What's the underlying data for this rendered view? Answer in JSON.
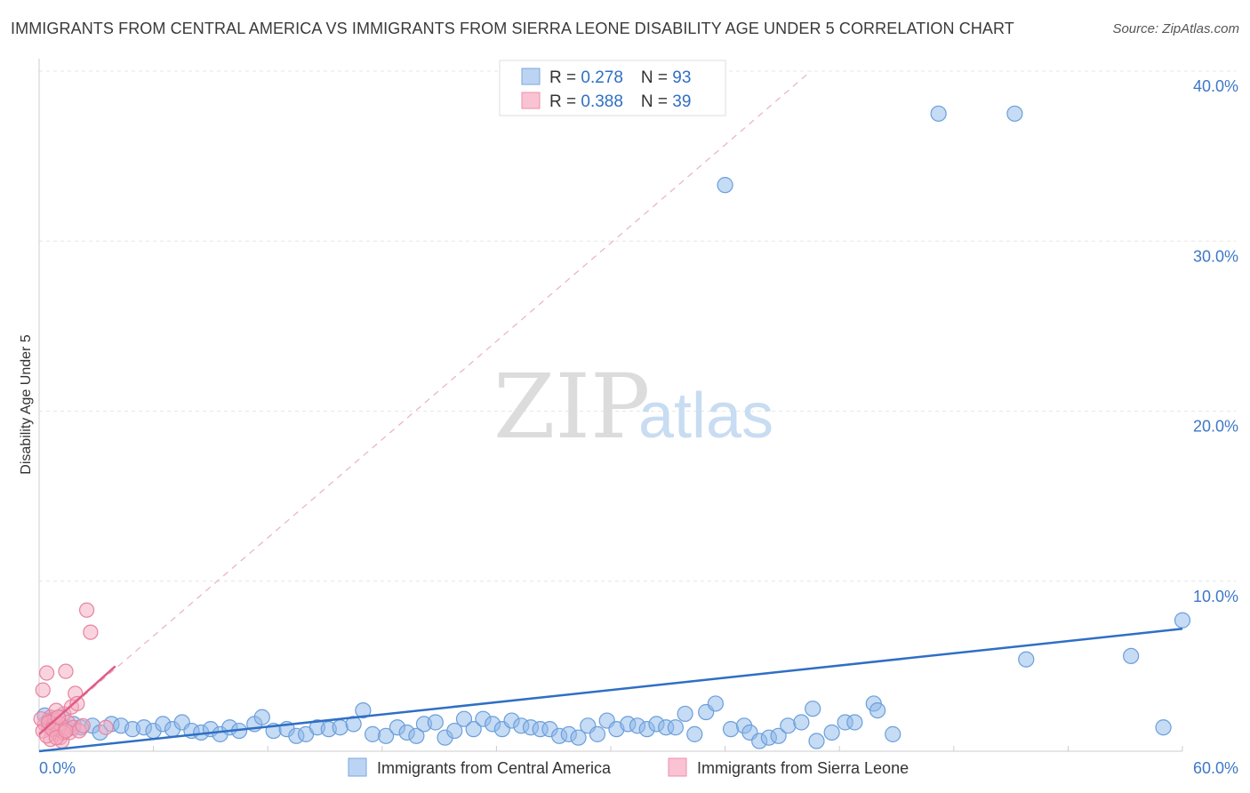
{
  "title": "IMMIGRANTS FROM CENTRAL AMERICA VS IMMIGRANTS FROM SIERRA LEONE DISABILITY AGE UNDER 5 CORRELATION CHART",
  "source": "Source: ZipAtlas.com",
  "watermark": {
    "zip": "ZIP",
    "atlas": "atlas"
  },
  "chart_data": {
    "type": "scatter",
    "ylabel": "Disability Age Under 5",
    "xlim": [
      0,
      60
    ],
    "ylim": [
      0,
      40
    ],
    "x_ticks": [
      {
        "value": 0,
        "label": "0.0%"
      },
      {
        "value": 60,
        "label": "60.0%"
      }
    ],
    "y_ticks": [
      {
        "value": 10,
        "label": "10.0%"
      },
      {
        "value": 20,
        "label": "20.0%"
      },
      {
        "value": 30,
        "label": "30.0%"
      },
      {
        "value": 40,
        "label": "40.0%"
      }
    ],
    "legend": [
      {
        "r_label": "R = ",
        "r_value": "0.278",
        "n_label": "N = ",
        "n_value": "93"
      },
      {
        "r_label": "R = ",
        "r_value": "0.388",
        "n_label": "N = ",
        "n_value": "39"
      }
    ],
    "series": [
      {
        "name": "Immigrants from Central America",
        "color": "#8db8ea",
        "stroke": "#6a9fdb",
        "trend_color": "#2f6fc4",
        "trend": {
          "x0": 0,
          "y0": 0.0,
          "x1": 60,
          "y1": 7.2
        },
        "points": [
          [
            0.3,
            2.1
          ],
          [
            0.5,
            1.8
          ],
          [
            0.7,
            1.5
          ],
          [
            1.0,
            1.6
          ],
          [
            1.2,
            2.0
          ],
          [
            1.5,
            1.3
          ],
          [
            1.8,
            1.6
          ],
          [
            2.2,
            1.4
          ],
          [
            2.8,
            1.5
          ],
          [
            3.2,
            1.1
          ],
          [
            3.8,
            1.6
          ],
          [
            4.3,
            1.5
          ],
          [
            4.9,
            1.3
          ],
          [
            5.5,
            1.4
          ],
          [
            6.0,
            1.2
          ],
          [
            6.5,
            1.6
          ],
          [
            7.0,
            1.3
          ],
          [
            7.5,
            1.7
          ],
          [
            8.0,
            1.2
          ],
          [
            8.5,
            1.1
          ],
          [
            9.0,
            1.3
          ],
          [
            9.5,
            1.0
          ],
          [
            10.0,
            1.4
          ],
          [
            10.5,
            1.2
          ],
          [
            11.3,
            1.6
          ],
          [
            11.7,
            2.0
          ],
          [
            12.3,
            1.2
          ],
          [
            13.0,
            1.3
          ],
          [
            13.5,
            0.9
          ],
          [
            14.0,
            1.0
          ],
          [
            14.6,
            1.4
          ],
          [
            15.2,
            1.3
          ],
          [
            15.8,
            1.4
          ],
          [
            16.5,
            1.6
          ],
          [
            17.0,
            2.4
          ],
          [
            17.5,
            1.0
          ],
          [
            18.2,
            0.9
          ],
          [
            18.8,
            1.4
          ],
          [
            19.3,
            1.1
          ],
          [
            19.8,
            0.9
          ],
          [
            20.2,
            1.6
          ],
          [
            20.8,
            1.7
          ],
          [
            21.3,
            0.8
          ],
          [
            21.8,
            1.2
          ],
          [
            22.3,
            1.9
          ],
          [
            22.8,
            1.3
          ],
          [
            23.3,
            1.9
          ],
          [
            23.8,
            1.6
          ],
          [
            24.3,
            1.3
          ],
          [
            24.8,
            1.8
          ],
          [
            25.3,
            1.5
          ],
          [
            25.8,
            1.4
          ],
          [
            26.3,
            1.3
          ],
          [
            26.8,
            1.3
          ],
          [
            27.3,
            0.9
          ],
          [
            27.8,
            1.0
          ],
          [
            28.3,
            0.8
          ],
          [
            28.8,
            1.5
          ],
          [
            29.3,
            1.0
          ],
          [
            29.8,
            1.8
          ],
          [
            30.3,
            1.3
          ],
          [
            30.9,
            1.6
          ],
          [
            31.4,
            1.5
          ],
          [
            31.9,
            1.3
          ],
          [
            32.4,
            1.6
          ],
          [
            32.9,
            1.4
          ],
          [
            33.4,
            1.4
          ],
          [
            33.9,
            2.2
          ],
          [
            34.4,
            1.0
          ],
          [
            35.0,
            2.3
          ],
          [
            35.5,
            2.8
          ],
          [
            36.3,
            1.3
          ],
          [
            37.0,
            1.5
          ],
          [
            37.3,
            1.1
          ],
          [
            37.8,
            0.6
          ],
          [
            38.3,
            0.8
          ],
          [
            38.8,
            0.9
          ],
          [
            39.3,
            1.5
          ],
          [
            40.0,
            1.7
          ],
          [
            40.6,
            2.5
          ],
          [
            40.8,
            0.6
          ],
          [
            41.6,
            1.1
          ],
          [
            42.3,
            1.7
          ],
          [
            42.8,
            1.7
          ],
          [
            43.8,
            2.8
          ],
          [
            44.0,
            2.4
          ],
          [
            44.8,
            1.0
          ],
          [
            47.2,
            37.5
          ],
          [
            51.2,
            37.5
          ],
          [
            36.0,
            33.3
          ],
          [
            51.8,
            5.4
          ],
          [
            57.3,
            5.6
          ],
          [
            60.0,
            7.7
          ],
          [
            59.0,
            1.4
          ]
        ]
      },
      {
        "name": "Immigrants from Sierra Leone",
        "color": "#f4a9c0",
        "stroke": "#e8839f",
        "trend_color": "#e05a86",
        "trend": {
          "x0": 0,
          "y0": 1.0,
          "x1": 4.0,
          "y1": 5.0
        },
        "trend_ext": {
          "x0": 0,
          "y0": 1.0,
          "x1": 40.5,
          "y1": 40.0
        },
        "points": [
          [
            0.2,
            3.6
          ],
          [
            0.4,
            4.6
          ],
          [
            0.6,
            2.0
          ],
          [
            0.7,
            1.8
          ],
          [
            0.8,
            1.2
          ],
          [
            0.9,
            1.0
          ],
          [
            1.0,
            1.5
          ],
          [
            1.1,
            0.8
          ],
          [
            1.2,
            1.3
          ],
          [
            1.3,
            2.2
          ],
          [
            1.4,
            4.7
          ],
          [
            1.5,
            1.7
          ],
          [
            1.6,
            1.1
          ],
          [
            1.7,
            2.6
          ],
          [
            1.8,
            1.4
          ],
          [
            1.9,
            3.4
          ],
          [
            2.0,
            2.8
          ],
          [
            2.1,
            1.2
          ],
          [
            2.3,
            1.5
          ],
          [
            2.5,
            8.3
          ],
          [
            2.7,
            7.0
          ],
          [
            0.3,
            1.6
          ],
          [
            0.5,
            1.4
          ],
          [
            0.6,
            0.7
          ],
          [
            0.8,
            1.9
          ],
          [
            0.9,
            2.4
          ],
          [
            1.0,
            1.3
          ],
          [
            1.1,
            1.6
          ],
          [
            1.2,
            0.6
          ],
          [
            1.3,
            1.1
          ],
          [
            0.1,
            1.9
          ],
          [
            0.2,
            1.2
          ],
          [
            0.4,
            0.9
          ],
          [
            0.5,
            1.7
          ],
          [
            0.7,
            1.3
          ],
          [
            0.9,
            0.8
          ],
          [
            1.0,
            2.0
          ],
          [
            1.4,
            1.2
          ],
          [
            3.5,
            1.4
          ]
        ]
      }
    ]
  },
  "bottom_legend": [
    {
      "label": "Immigrants from Central America"
    },
    {
      "label": "Immigrants from Sierra Leone"
    }
  ]
}
